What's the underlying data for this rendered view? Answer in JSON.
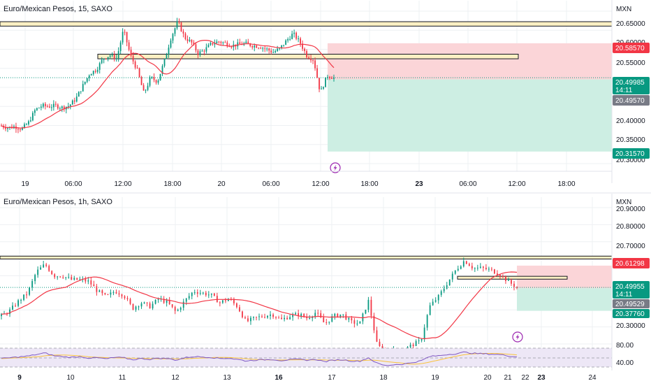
{
  "colors": {
    "up": "#089981",
    "down": "#f23645",
    "ma": "#f23645",
    "zone_fill": "#fdf0c3",
    "loss_fill": "#fbd5d8",
    "profit_fill": "#cdeee3",
    "grid": "#eef0f3",
    "text": "#131722",
    "rsi_fill": "#ede7f6",
    "rsi_line": "#7e57c2",
    "rsi_ma": "#f9c23c"
  },
  "panel1": {
    "title": "Euro/Mexican Pesos, 15, SAXO",
    "unit": "MXN",
    "y_ticks": [
      "20.65000",
      "20.60000",
      "20.55000",
      "20.40000",
      "20.35000",
      "20.30000"
    ],
    "x_ticks": [
      {
        "label": "19",
        "bold": false
      },
      {
        "label": "06:00",
        "bold": false
      },
      {
        "label": "12:00",
        "bold": false
      },
      {
        "label": "18:00",
        "bold": false
      },
      {
        "label": "20",
        "bold": false
      },
      {
        "label": "06:00",
        "bold": false
      },
      {
        "label": "12:00",
        "bold": false
      },
      {
        "label": "18:00",
        "bold": false
      },
      {
        "label": "23",
        "bold": true
      },
      {
        "label": "06:00",
        "bold": false
      },
      {
        "label": "12:00",
        "bold": false
      },
      {
        "label": "18:00",
        "bold": false
      }
    ],
    "price_labels": {
      "stop": "20.58570",
      "last": "20.49985",
      "countdown": "14:11",
      "entry": "20.49570",
      "target": "20.31570"
    },
    "levels": {
      "resistance_zone": [
        20.6395,
        20.6285
      ],
      "mid_zone": [
        20.5585,
        20.547
      ],
      "stop": 20.5857,
      "entry": 20.4957,
      "target": 20.3157,
      "last": 20.49985
    },
    "chart_data": {
      "type": "candlestick",
      "ylim": [
        20.2857,
        20.6657
      ],
      "x_ticks": [
        "19",
        "06:00",
        "12:00",
        "18:00",
        "20",
        "06:00",
        "12:00",
        "18:00",
        "23",
        "06:00",
        "12:00",
        "18:00"
      ],
      "close_path": [
        20.38,
        20.375,
        20.378,
        20.372,
        20.388,
        20.42,
        20.43,
        20.428,
        20.43,
        20.425,
        20.43,
        20.448,
        20.48,
        20.51,
        20.52,
        20.548,
        20.556,
        20.548,
        20.62,
        20.556,
        20.52,
        20.46,
        20.5,
        20.49,
        20.54,
        20.6,
        20.64,
        20.6,
        20.588,
        20.56,
        20.57,
        20.585,
        20.59,
        20.586,
        20.58,
        20.583,
        20.585,
        20.58,
        20.578,
        20.572,
        20.563,
        20.572,
        20.592,
        20.61,
        20.588,
        20.555,
        20.545,
        20.462,
        20.505,
        20.49985
      ]
    }
  },
  "panel2": {
    "title": "Euro/Mexican Pesos, 1h, SAXO",
    "unit": "MXN",
    "y_ticks": [
      "20.90000",
      "20.80000",
      "20.70000",
      "20.30000",
      "80.00",
      "40.00"
    ],
    "x_ticks": [
      {
        "label": "9",
        "bold": true
      },
      {
        "label": "10",
        "bold": false
      },
      {
        "label": "11",
        "bold": false
      },
      {
        "label": "12",
        "bold": false
      },
      {
        "label": "13",
        "bold": false
      },
      {
        "label": "16",
        "bold": true
      },
      {
        "label": "17",
        "bold": false
      },
      {
        "label": "18",
        "bold": false
      },
      {
        "label": "19",
        "bold": false
      },
      {
        "label": "20",
        "bold": false
      },
      {
        "label": "21",
        "bold": false
      },
      {
        "label": "22",
        "bold": false
      },
      {
        "label": "23",
        "bold": true
      },
      {
        "label": "24",
        "bold": false
      }
    ],
    "price_labels": {
      "stop": "20.61298",
      "last": "20.49955",
      "countdown": "14:11",
      "entry": "20.49529",
      "target": "20.37760"
    },
    "levels": {
      "resistance_zone": [
        20.6625,
        20.6475
      ],
      "mid_zone": [
        20.5575,
        20.5425
      ],
      "stop": 20.61298,
      "entry": 20.49529,
      "target": 20.3776,
      "last": 20.49955
    },
    "chart_data": {
      "type": "candlestick",
      "ylim": [
        20.205,
        20.915
      ],
      "rsi_ylim": [
        20,
        90
      ],
      "x_ticks": [
        "9",
        "10",
        "11",
        "12",
        "13",
        "16",
        "17",
        "18",
        "19",
        "20",
        "21",
        "22",
        "23",
        "24"
      ],
      "close_path": [
        20.35,
        20.38,
        20.43,
        20.47,
        20.58,
        20.62,
        20.56,
        20.56,
        20.54,
        20.54,
        20.53,
        20.48,
        20.45,
        20.48,
        20.46,
        20.39,
        20.42,
        20.4,
        20.44,
        20.42,
        20.37,
        20.43,
        20.48,
        20.47,
        20.46,
        20.42,
        20.44,
        20.4,
        20.32,
        20.34,
        20.35,
        20.36,
        20.33,
        20.35,
        20.36,
        20.34,
        20.37,
        20.31,
        20.35,
        20.36,
        20.32,
        20.31,
        20.43,
        20.2,
        20.16,
        20.17,
        20.17,
        20.2,
        20.22,
        20.4,
        20.45,
        20.52,
        20.59,
        20.64,
        20.6,
        20.6,
        20.59,
        20.57,
        20.53,
        20.49955
      ],
      "rsi_path": [
        50,
        52,
        54,
        56,
        60,
        64,
        57,
        55,
        53,
        55,
        51,
        52,
        49,
        53,
        52,
        47,
        50,
        48,
        51,
        50,
        46,
        52,
        55,
        54,
        53,
        50,
        51,
        48,
        44,
        46,
        47,
        48,
        45,
        47,
        48,
        46,
        48,
        42,
        46,
        47,
        44,
        43,
        52,
        38,
        32,
        35,
        36,
        40,
        44,
        55,
        57,
        60,
        62,
        66,
        63,
        62,
        61,
        60,
        57,
        54
      ]
    }
  },
  "icons": {
    "flash": "lightning-bolt-icon"
  }
}
